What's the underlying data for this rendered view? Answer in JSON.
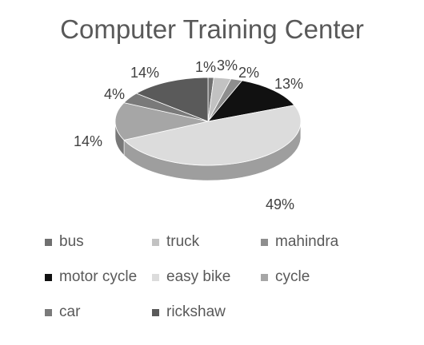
{
  "chart_data": {
    "type": "pie",
    "title": "Computer Training Center",
    "categories": [
      "bus",
      "truck",
      "mahindra",
      "motor cycle",
      "easy bike",
      "cycle",
      "car",
      "rickshaw"
    ],
    "values": [
      1,
      3,
      2,
      13,
      49,
      14,
      4,
      14
    ],
    "data_labels": [
      "1%",
      "3%",
      "2%",
      "13%",
      "49%",
      "14%",
      "4%",
      "14%"
    ],
    "colors": [
      "#707070",
      "#c2c2c2",
      "#8e8e8e",
      "#111111",
      "#dcdcdc",
      "#a6a6a6",
      "#7a7a7a",
      "#5a5a5a"
    ],
    "legend_position": "bottom",
    "style": "3d"
  }
}
